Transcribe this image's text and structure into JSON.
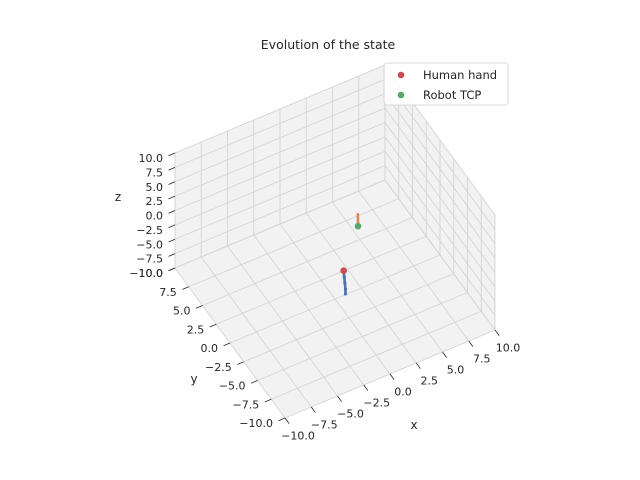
{
  "chart_data": {
    "type": "scatter",
    "projection": "3d",
    "title": "Evolution of the state",
    "xlabel": "x",
    "ylabel": "y",
    "zlabel": "z",
    "xlim": [
      -10,
      10
    ],
    "ylim": [
      -10,
      10
    ],
    "zlim": [
      -10,
      10
    ],
    "x_ticks": [
      "−10.0",
      "−7.5",
      "−5.0",
      "−2.5",
      "0.0",
      "2.5",
      "5.0",
      "7.5",
      "10.0"
    ],
    "y_ticks": [
      "−10.0",
      "−7.5",
      "−5.0",
      "−2.5",
      "0.0",
      "2.5",
      "5.0",
      "7.5",
      "10.0"
    ],
    "z_ticks": [
      "−10.0",
      "−7.5",
      "−5.0",
      "−2.5",
      "0.0",
      "2.5",
      "5.0",
      "7.5",
      "10.0"
    ],
    "grid": true,
    "legend_position": "top-right",
    "series": [
      {
        "name": "Human hand",
        "kind": "point",
        "color": "#c44e52",
        "x": 0.3,
        "y": -1.0,
        "z": -4.0
      },
      {
        "name": "Robot TCP",
        "kind": "point",
        "color": "#55a868",
        "x": 2.4,
        "y": 0.4,
        "z": 0.3
      },
      {
        "name": "",
        "kind": "trajectory",
        "color": "#4c72b0",
        "points": [
          [
            0.3,
            -1.0,
            -4.0
          ],
          [
            0.2,
            -1.3,
            -4.6
          ],
          [
            0.1,
            -1.6,
            -5.2
          ],
          [
            0.0,
            -1.9,
            -5.8
          ],
          [
            -0.1,
            -2.1,
            -6.3
          ]
        ]
      },
      {
        "name": "",
        "kind": "trajectory",
        "color": "#dd8452",
        "points": [
          [
            2.4,
            0.4,
            0.3
          ],
          [
            2.5,
            0.6,
            1.0
          ],
          [
            2.6,
            0.8,
            1.7
          ]
        ]
      }
    ],
    "colors": {
      "pane": "#f2f2f2",
      "grid": "#d4d4d4",
      "text": "#262626"
    }
  }
}
